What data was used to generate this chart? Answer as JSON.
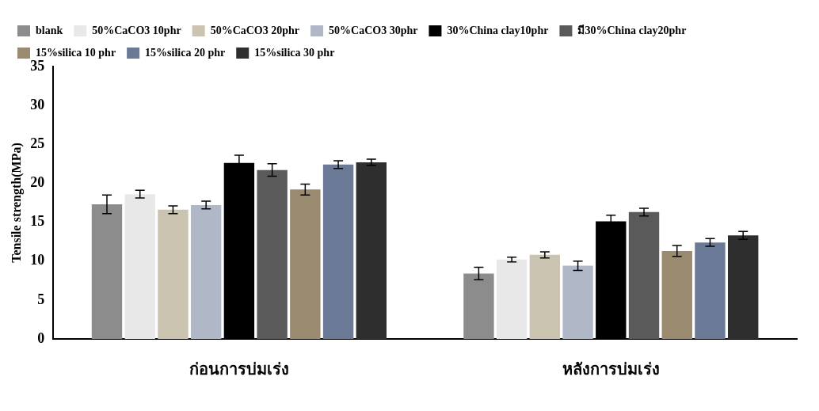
{
  "chart_data": {
    "type": "bar",
    "ylabel": "Tensile strength(MPa)",
    "categories": [
      "ก่อนการบ่มเร่ง",
      "หลังการบ่มเร่ง"
    ],
    "ylim": [
      0,
      35
    ],
    "yticks": [
      0,
      5,
      10,
      15,
      20,
      25,
      30,
      35
    ],
    "grid": false,
    "legend": "top left",
    "series": [
      {
        "name": "blank",
        "color": "#8c8c8c",
        "values": [
          17.3,
          8.4
        ],
        "errors": [
          1.2,
          0.8
        ]
      },
      {
        "name": "50%CaCO3 10phr",
        "color": "#e8e8e8",
        "values": [
          18.6,
          10.2
        ],
        "errors": [
          0.5,
          0.3
        ]
      },
      {
        "name": "50%CaCO3 20phr",
        "color": "#c9c3b0",
        "values": [
          16.6,
          10.8
        ],
        "errors": [
          0.5,
          0.4
        ]
      },
      {
        "name": "50%CaCO3 30phr",
        "color": "#b0b8c8",
        "values": [
          17.2,
          9.4
        ],
        "errors": [
          0.5,
          0.6
        ]
      },
      {
        "name": "30%China clay10phr",
        "color": "#000000",
        "values": [
          22.6,
          15.1
        ],
        "errors": [
          1.0,
          0.8
        ]
      },
      {
        "name": "มี30%China clay20phr",
        "color": "#5a5a5a",
        "values": [
          21.7,
          16.3
        ],
        "errors": [
          0.8,
          0.5
        ]
      },
      {
        "name": "15%silica 10 phr",
        "color": "#9a8a70",
        "values": [
          19.2,
          11.3
        ],
        "errors": [
          0.7,
          0.7
        ]
      },
      {
        "name": "15%silica 20 phr",
        "color": "#6a7a96",
        "values": [
          22.4,
          12.4
        ],
        "errors": [
          0.5,
          0.5
        ]
      },
      {
        "name": "15%silica 30 phr",
        "color": "#2e2e2e",
        "values": [
          22.7,
          13.3
        ],
        "errors": [
          0.4,
          0.5
        ]
      }
    ]
  }
}
